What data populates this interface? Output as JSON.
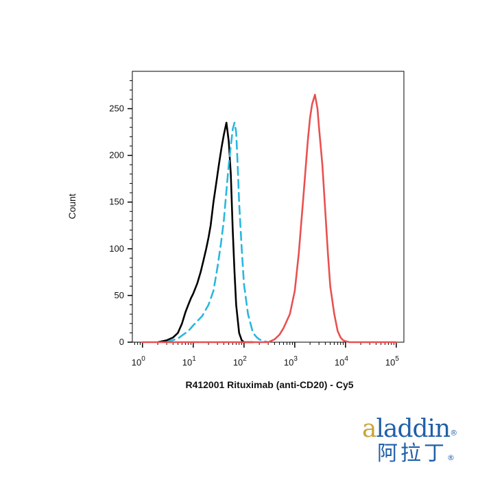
{
  "chart_data": {
    "type": "line",
    "title": "",
    "xlabel": "R412001 Rituximab (anti-CD20) - Cy5",
    "ylabel": "Count",
    "x_scale": "log",
    "xlim_exponent": [
      -0.2,
      5.15
    ],
    "ylim": [
      0,
      290
    ],
    "y_ticks": [
      0,
      50,
      100,
      150,
      200,
      250
    ],
    "x_tick_labels": [
      {
        "base": "10",
        "exp": "0"
      },
      {
        "base": "10",
        "exp": "1"
      },
      {
        "base": "10",
        "exp": "2"
      },
      {
        "base": "10",
        "exp": "3"
      },
      {
        "base": "10",
        "exp": "4"
      },
      {
        "base": "10",
        "exp": "5"
      }
    ],
    "grid": false,
    "legend": "none",
    "series": [
      {
        "color": "#000000",
        "style": "solid",
        "x": [
          2,
          3,
          4,
          5,
          6,
          7,
          8,
          9,
          10,
          12,
          14,
          16,
          18,
          20,
          22,
          25,
          28,
          32,
          36,
          40,
          45,
          50,
          55,
          60,
          65,
          70,
          80,
          90,
          100,
          120,
          150
        ],
        "y": [
          0,
          2,
          5,
          10,
          20,
          32,
          40,
          47,
          52,
          63,
          75,
          88,
          100,
          112,
          125,
          150,
          168,
          190,
          208,
          222,
          235,
          215,
          180,
          120,
          75,
          40,
          10,
          2,
          0,
          0,
          0
        ]
      },
      {
        "color": "#29b6e0",
        "style": "dashed",
        "x": [
          3,
          5,
          8,
          10,
          15,
          20,
          25,
          30,
          35,
          40,
          45,
          50,
          55,
          60,
          65,
          70,
          75,
          80,
          90,
          100,
          120,
          150,
          180,
          200,
          250,
          300
        ],
        "y": [
          0,
          4,
          12,
          18,
          28,
          40,
          55,
          80,
          105,
          130,
          162,
          190,
          210,
          228,
          235,
          225,
          190,
          150,
          100,
          62,
          30,
          10,
          5,
          3,
          1,
          0
        ]
      },
      {
        "color": "#e8504f",
        "style": "solid",
        "x": [
          1,
          100,
          200,
          300,
          400,
          500,
          600,
          800,
          1000,
          1200,
          1500,
          1800,
          2000,
          2200,
          2500,
          2800,
          3000,
          3500,
          4000,
          4500,
          5000,
          6000,
          7000,
          8000,
          9000,
          10000,
          12000,
          100000
        ],
        "y": [
          0,
          0,
          0,
          0,
          3,
          8,
          15,
          30,
          55,
          95,
          160,
          215,
          240,
          255,
          265,
          250,
          230,
          190,
          140,
          95,
          60,
          30,
          12,
          5,
          2,
          1,
          0,
          0
        ]
      }
    ]
  }
}
